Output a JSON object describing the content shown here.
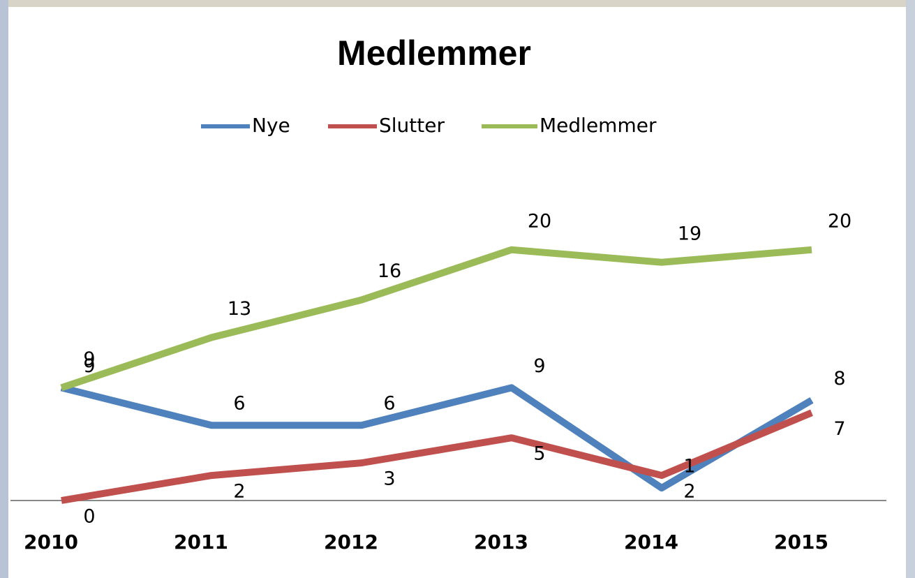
{
  "chart_data": {
    "type": "line",
    "title": "Medlemmer",
    "categories": [
      "2010",
      "2011",
      "2012",
      "2013",
      "2014",
      "2015"
    ],
    "series": [
      {
        "name": "Nye",
        "color": "#4f81bd",
        "values": [
          9,
          6,
          6,
          9,
          1,
          8
        ]
      },
      {
        "name": "Slutter",
        "color": "#c0504d",
        "values": [
          0,
          2,
          3,
          5,
          2,
          7
        ]
      },
      {
        "name": "Medlemmer",
        "color": "#9bbb59",
        "values": [
          9,
          13,
          16,
          20,
          19,
          20
        ]
      }
    ],
    "ylim": [
      0,
      25
    ],
    "legend": "top"
  }
}
